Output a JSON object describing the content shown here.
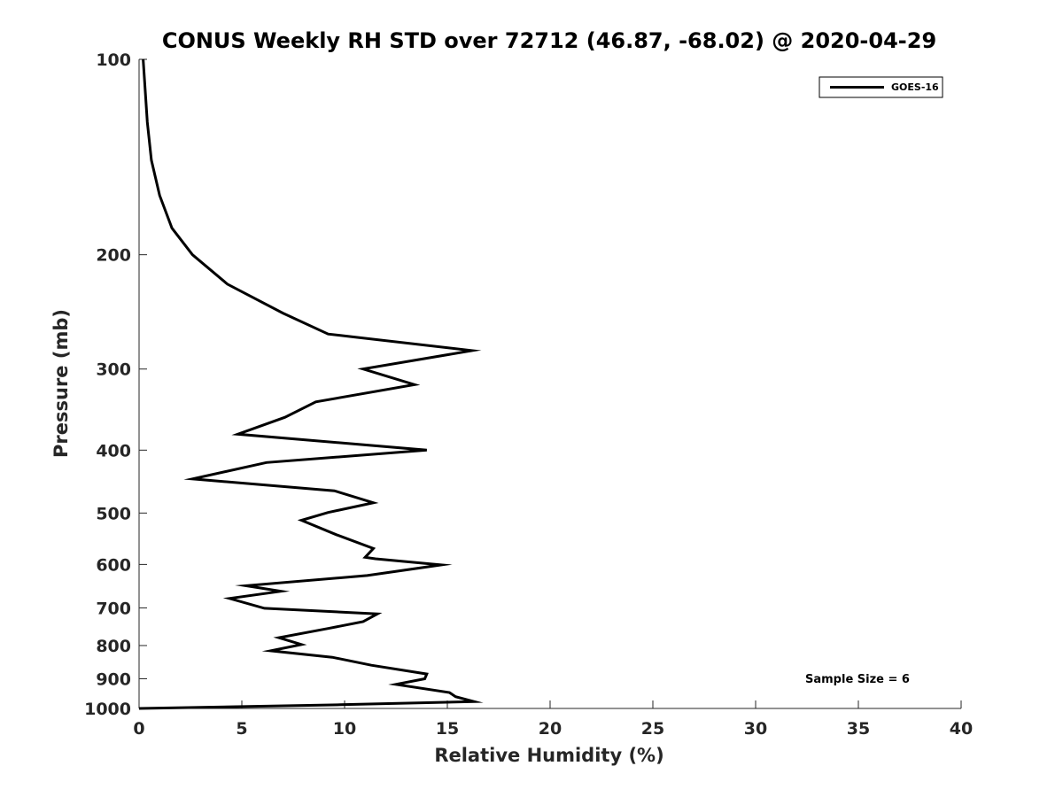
{
  "chart_data": {
    "type": "line",
    "title": "CONUS Weekly RH STD over 72712 (46.87, -68.02) @ 2020-04-29",
    "xlabel": "Relative Humidity (%)",
    "ylabel": "Pressure (mb)",
    "xlim": [
      0,
      40
    ],
    "ylim": [
      100,
      1000
    ],
    "y_scale": "log",
    "y_reversed": true,
    "grid": false,
    "legend_position": "top-right",
    "xticks": [
      0,
      5,
      10,
      15,
      20,
      25,
      30,
      35,
      40
    ],
    "yticks": [
      100,
      200,
      300,
      400,
      500,
      600,
      700,
      800,
      900,
      1000
    ],
    "series": [
      {
        "name": "GOES-16",
        "color": "#000000",
        "points": [
          [
            0.2,
            100
          ],
          [
            0.4,
            125
          ],
          [
            0.6,
            143
          ],
          [
            1.0,
            162
          ],
          [
            1.6,
            182
          ],
          [
            2.6,
            200
          ],
          [
            4.3,
            222
          ],
          [
            7.0,
            246
          ],
          [
            9.2,
            265
          ],
          [
            16.2,
            281
          ],
          [
            10.9,
            300
          ],
          [
            13.4,
            317
          ],
          [
            8.6,
            337
          ],
          [
            7.1,
            356
          ],
          [
            4.8,
            378
          ],
          [
            14.0,
            400
          ],
          [
            6.2,
            418
          ],
          [
            2.6,
            443
          ],
          [
            9.5,
            462
          ],
          [
            11.4,
            482
          ],
          [
            9.2,
            499
          ],
          [
            7.9,
            513
          ],
          [
            9.6,
            540
          ],
          [
            11.4,
            567
          ],
          [
            11.0,
            585
          ],
          [
            11.5,
            588
          ],
          [
            14.7,
            601
          ],
          [
            11.1,
            624
          ],
          [
            5.2,
            647
          ],
          [
            6.9,
            660
          ],
          [
            4.4,
            677
          ],
          [
            6.1,
            701
          ],
          [
            11.6,
            715
          ],
          [
            10.9,
            735
          ],
          [
            9.2,
            753
          ],
          [
            6.8,
            778
          ],
          [
            7.9,
            797
          ],
          [
            6.4,
            815
          ],
          [
            9.4,
            834
          ],
          [
            11.3,
            858
          ],
          [
            14.0,
            885
          ],
          [
            13.9,
            900
          ],
          [
            12.5,
            918
          ],
          [
            15.1,
            945
          ],
          [
            15.4,
            959
          ],
          [
            16.3,
            976
          ],
          [
            9.8,
            987
          ],
          [
            0.0,
            1000
          ]
        ]
      }
    ],
    "annotations": [
      {
        "text": "Sample Size = 6"
      }
    ]
  }
}
